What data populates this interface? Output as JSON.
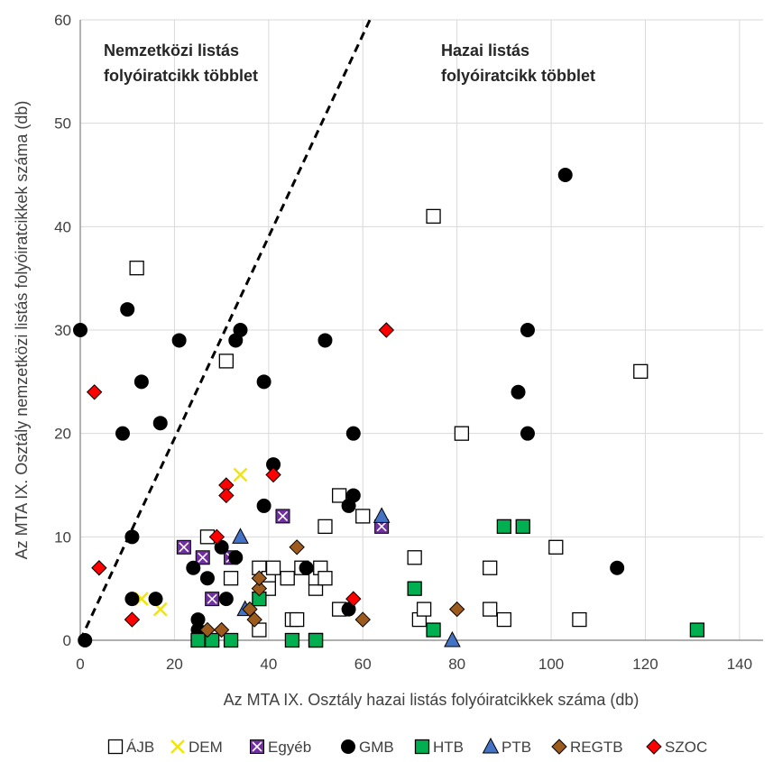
{
  "chart_data": {
    "type": "scatter",
    "xlabel": "Az MTA IX. Osztály hazai listás folyóiratcikkek száma (db)",
    "ylabel": "Az MTA IX. Osztály nemzetközi listás folyóiratcikkek száma (db)",
    "xlim": [
      0,
      145
    ],
    "ylim": [
      0,
      60
    ],
    "xticks": [
      0,
      20,
      40,
      60,
      80,
      100,
      120,
      140
    ],
    "yticks": [
      0,
      10,
      20,
      30,
      40,
      50,
      60
    ],
    "grid": true,
    "legend_position": "bottom",
    "annotations": [
      {
        "lines": [
          "Nemzetközi listás",
          "folyóiratcikk többlet"
        ]
      },
      {
        "lines": [
          "Hazai listás",
          "folyóiratcikk többlet"
        ]
      }
    ],
    "reference_line": {
      "style": "dashed",
      "from": [
        0,
        0
      ],
      "to": [
        61.5,
        60
      ]
    },
    "series": [
      {
        "name": "ÁJB",
        "marker": "square",
        "fill": "#ffffff",
        "stroke": "#000000",
        "points": [
          [
            12,
            36
          ],
          [
            31,
            27
          ],
          [
            27,
            10
          ],
          [
            32,
            6
          ],
          [
            38,
            1
          ],
          [
            38,
            7
          ],
          [
            40,
            6
          ],
          [
            40,
            5
          ],
          [
            41,
            7
          ],
          [
            44,
            6
          ],
          [
            45,
            2
          ],
          [
            46,
            2
          ],
          [
            47,
            7
          ],
          [
            50,
            5
          ],
          [
            50,
            6
          ],
          [
            50,
            0
          ],
          [
            51,
            7
          ],
          [
            52,
            6
          ],
          [
            52,
            11
          ],
          [
            55,
            3
          ],
          [
            55,
            14
          ],
          [
            60,
            12
          ],
          [
            71,
            8
          ],
          [
            72,
            2
          ],
          [
            73,
            3
          ],
          [
            75,
            41
          ],
          [
            81,
            20
          ],
          [
            87,
            7
          ],
          [
            87,
            3
          ],
          [
            90,
            2
          ],
          [
            101,
            9
          ],
          [
            106,
            2
          ],
          [
            119,
            26
          ]
        ]
      },
      {
        "name": "DEM",
        "marker": "x",
        "fill": "none",
        "stroke": "#f2e600",
        "points": [
          [
            13,
            4
          ],
          [
            17,
            3
          ],
          [
            34,
            16
          ]
        ]
      },
      {
        "name": "Egyéb",
        "marker": "xsquare",
        "fill": "#7030a0",
        "stroke": "#000000",
        "points": [
          [
            22,
            9
          ],
          [
            26,
            8
          ],
          [
            28,
            4
          ],
          [
            32,
            8
          ],
          [
            43,
            12
          ],
          [
            64,
            11
          ]
        ]
      },
      {
        "name": "GMB",
        "marker": "circle",
        "fill": "#000000",
        "stroke": "#000000",
        "points": [
          [
            0,
            30
          ],
          [
            1,
            0
          ],
          [
            9,
            20
          ],
          [
            10,
            32
          ],
          [
            11,
            10
          ],
          [
            11,
            4
          ],
          [
            13,
            25
          ],
          [
            16,
            4
          ],
          [
            17,
            21
          ],
          [
            21,
            29
          ],
          [
            24,
            7
          ],
          [
            25,
            2
          ],
          [
            25,
            1
          ],
          [
            27,
            6
          ],
          [
            30,
            9
          ],
          [
            31,
            4
          ],
          [
            33,
            29
          ],
          [
            33,
            8
          ],
          [
            34,
            30
          ],
          [
            39,
            25
          ],
          [
            39,
            13
          ],
          [
            41,
            17
          ],
          [
            48,
            7
          ],
          [
            52,
            29
          ],
          [
            57,
            13
          ],
          [
            57,
            3
          ],
          [
            58,
            14
          ],
          [
            58,
            20
          ],
          [
            93,
            24
          ],
          [
            95,
            30
          ],
          [
            95,
            20
          ],
          [
            103,
            45
          ],
          [
            114,
            7
          ]
        ]
      },
      {
        "name": "HTB",
        "marker": "square",
        "fill": "#00b050",
        "stroke": "#000000",
        "points": [
          [
            25,
            0
          ],
          [
            28,
            0
          ],
          [
            32,
            0
          ],
          [
            38,
            4
          ],
          [
            45,
            0
          ],
          [
            50,
            0
          ],
          [
            71,
            5
          ],
          [
            75,
            1
          ],
          [
            90,
            11
          ],
          [
            94,
            11
          ],
          [
            131,
            1
          ]
        ]
      },
      {
        "name": "PTB",
        "marker": "triangle",
        "fill": "#4472c4",
        "stroke": "#000000",
        "points": [
          [
            34,
            10
          ],
          [
            35,
            3
          ],
          [
            64,
            12
          ],
          [
            79,
            0
          ]
        ]
      },
      {
        "name": "REGTB",
        "marker": "diamond",
        "fill": "#9c5b1c",
        "stroke": "#000000",
        "points": [
          [
            27,
            1
          ],
          [
            30,
            1
          ],
          [
            36,
            3
          ],
          [
            37,
            2
          ],
          [
            38,
            5
          ],
          [
            38,
            6
          ],
          [
            46,
            9
          ],
          [
            60,
            2
          ],
          [
            80,
            3
          ]
        ]
      },
      {
        "name": "SZOC",
        "marker": "diamond",
        "fill": "#ff0000",
        "stroke": "#000000",
        "points": [
          [
            3,
            24
          ],
          [
            4,
            7
          ],
          [
            11,
            2
          ],
          [
            29,
            10
          ],
          [
            31,
            15
          ],
          [
            31,
            14
          ],
          [
            41,
            16
          ],
          [
            58,
            4
          ],
          [
            65,
            30
          ]
        ]
      }
    ]
  }
}
